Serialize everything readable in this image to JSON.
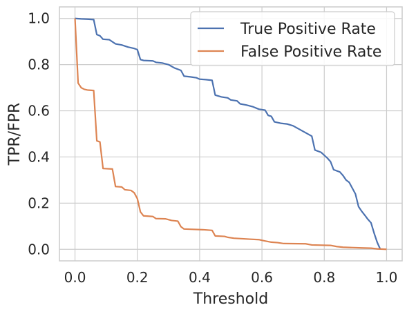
{
  "chart_data": {
    "type": "line",
    "xlabel": "Threshold",
    "ylabel": "TPR/FPR",
    "xlim": [
      -0.05,
      1.05
    ],
    "ylim": [
      -0.05,
      1.05
    ],
    "x_ticks": [
      0.0,
      0.2,
      0.4,
      0.6,
      0.8,
      1.0
    ],
    "x_tick_labels": [
      "0.0",
      "0.2",
      "0.4",
      "0.6",
      "0.8",
      "1.0"
    ],
    "y_ticks": [
      0.0,
      0.2,
      0.4,
      0.6,
      0.8,
      1.0
    ],
    "y_tick_labels": [
      "0.0",
      "0.2",
      "0.4",
      "0.6",
      "0.8",
      "1.0"
    ],
    "grid": true,
    "legend_position": "top-right",
    "series": [
      {
        "name": "True Positive Rate",
        "color": "#4c72b0",
        "points": [
          [
            0.0,
            1.0
          ],
          [
            0.02,
            0.998
          ],
          [
            0.04,
            0.997
          ],
          [
            0.06,
            0.995
          ],
          [
            0.07,
            0.93
          ],
          [
            0.08,
            0.925
          ],
          [
            0.09,
            0.91
          ],
          [
            0.11,
            0.908
          ],
          [
            0.13,
            0.89
          ],
          [
            0.15,
            0.885
          ],
          [
            0.17,
            0.876
          ],
          [
            0.19,
            0.87
          ],
          [
            0.2,
            0.865
          ],
          [
            0.21,
            0.822
          ],
          [
            0.22,
            0.818
          ],
          [
            0.25,
            0.816
          ],
          [
            0.26,
            0.81
          ],
          [
            0.28,
            0.807
          ],
          [
            0.3,
            0.8
          ],
          [
            0.32,
            0.785
          ],
          [
            0.34,
            0.775
          ],
          [
            0.35,
            0.75
          ],
          [
            0.37,
            0.747
          ],
          [
            0.39,
            0.743
          ],
          [
            0.4,
            0.737
          ],
          [
            0.42,
            0.735
          ],
          [
            0.44,
            0.732
          ],
          [
            0.45,
            0.668
          ],
          [
            0.47,
            0.66
          ],
          [
            0.49,
            0.656
          ],
          [
            0.5,
            0.647
          ],
          [
            0.52,
            0.643
          ],
          [
            0.53,
            0.63
          ],
          [
            0.55,
            0.625
          ],
          [
            0.57,
            0.618
          ],
          [
            0.59,
            0.607
          ],
          [
            0.61,
            0.603
          ],
          [
            0.62,
            0.58
          ],
          [
            0.63,
            0.576
          ],
          [
            0.64,
            0.552
          ],
          [
            0.66,
            0.546
          ],
          [
            0.68,
            0.543
          ],
          [
            0.7,
            0.535
          ],
          [
            0.72,
            0.52
          ],
          [
            0.74,
            0.505
          ],
          [
            0.76,
            0.49
          ],
          [
            0.77,
            0.43
          ],
          [
            0.79,
            0.42
          ],
          [
            0.81,
            0.395
          ],
          [
            0.82,
            0.38
          ],
          [
            0.83,
            0.345
          ],
          [
            0.85,
            0.335
          ],
          [
            0.86,
            0.32
          ],
          [
            0.87,
            0.3
          ],
          [
            0.88,
            0.29
          ],
          [
            0.89,
            0.265
          ],
          [
            0.9,
            0.24
          ],
          [
            0.91,
            0.185
          ],
          [
            0.92,
            0.165
          ],
          [
            0.93,
            0.148
          ],
          [
            0.94,
            0.13
          ],
          [
            0.95,
            0.115
          ],
          [
            0.96,
            0.07
          ],
          [
            0.97,
            0.03
          ],
          [
            0.98,
            0.0
          ]
        ]
      },
      {
        "name": "False Positive Rate",
        "color": "#dd8452",
        "points": [
          [
            0.0,
            1.0
          ],
          [
            0.01,
            0.72
          ],
          [
            0.02,
            0.7
          ],
          [
            0.03,
            0.693
          ],
          [
            0.04,
            0.69
          ],
          [
            0.06,
            0.688
          ],
          [
            0.07,
            0.47
          ],
          [
            0.08,
            0.465
          ],
          [
            0.09,
            0.35
          ],
          [
            0.12,
            0.348
          ],
          [
            0.13,
            0.272
          ],
          [
            0.15,
            0.27
          ],
          [
            0.16,
            0.258
          ],
          [
            0.18,
            0.255
          ],
          [
            0.19,
            0.245
          ],
          [
            0.2,
            0.22
          ],
          [
            0.21,
            0.162
          ],
          [
            0.22,
            0.145
          ],
          [
            0.25,
            0.142
          ],
          [
            0.26,
            0.133
          ],
          [
            0.29,
            0.132
          ],
          [
            0.31,
            0.125
          ],
          [
            0.33,
            0.122
          ],
          [
            0.34,
            0.098
          ],
          [
            0.35,
            0.088
          ],
          [
            0.37,
            0.087
          ],
          [
            0.41,
            0.085
          ],
          [
            0.44,
            0.082
          ],
          [
            0.45,
            0.058
          ],
          [
            0.48,
            0.056
          ],
          [
            0.49,
            0.052
          ],
          [
            0.51,
            0.048
          ],
          [
            0.56,
            0.044
          ],
          [
            0.59,
            0.042
          ],
          [
            0.61,
            0.036
          ],
          [
            0.63,
            0.031
          ],
          [
            0.65,
            0.029
          ],
          [
            0.67,
            0.025
          ],
          [
            0.74,
            0.024
          ],
          [
            0.76,
            0.019
          ],
          [
            0.82,
            0.017
          ],
          [
            0.84,
            0.012
          ],
          [
            0.86,
            0.009
          ],
          [
            0.92,
            0.006
          ],
          [
            0.95,
            0.005
          ],
          [
            0.97,
            0.002
          ],
          [
            1.0,
            0.0
          ]
        ]
      }
    ]
  },
  "colors": {
    "background": "#ffffff",
    "grid": "#cccccc",
    "axes_edge": "#cccccc",
    "text": "#262626",
    "legend_edge": "#cccccc"
  }
}
